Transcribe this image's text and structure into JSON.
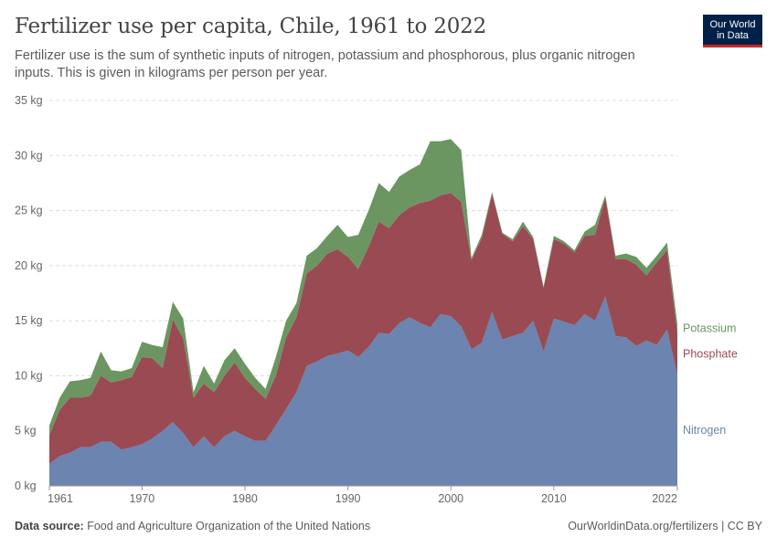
{
  "header": {
    "title": "Fertilizer use per capita, Chile, 1961 to 2022",
    "subtitle": "Fertilizer use is the sum of synthetic inputs of nitrogen, potassium and phosphorous, plus organic nitrogen inputs. This is given in kilograms per person per year."
  },
  "logo": {
    "line1": "Our World",
    "line2": "in Data"
  },
  "footer": {
    "source_label": "Data source:",
    "source_text": "Food and Agriculture Organization of the United Nations",
    "right_text": "OurWorldinData.org/fertilizers | CC BY"
  },
  "colors": {
    "Nitrogen": "#6b84b0",
    "Phosphate": "#9a4a52",
    "Potassium": "#6b9662",
    "grid": "#dddddd",
    "axis_text": "#666666"
  },
  "chart_data": {
    "type": "area",
    "stacked": true,
    "title": "Fertilizer use per capita, Chile, 1961 to 2022",
    "ylim": [
      0,
      35
    ],
    "y_ticks": [
      0,
      5,
      10,
      15,
      20,
      25,
      30,
      35
    ],
    "y_tick_labels": [
      "0 kg",
      "5 kg",
      "10 kg",
      "15 kg",
      "20 kg",
      "25 kg",
      "30 kg",
      "35 kg"
    ],
    "x_ticks": [
      1961,
      1970,
      1980,
      1990,
      2000,
      2010,
      2022
    ],
    "x_tick_labels": [
      "1961",
      "1970",
      "1980",
      "1990",
      "2000",
      "2010",
      "2022"
    ],
    "xlim": [
      1961,
      2022
    ],
    "grid": true,
    "legend_placement": "right-inline",
    "x": [
      1961,
      1962,
      1963,
      1964,
      1965,
      1966,
      1967,
      1968,
      1969,
      1970,
      1971,
      1972,
      1973,
      1974,
      1975,
      1976,
      1977,
      1978,
      1979,
      1980,
      1981,
      1982,
      1983,
      1984,
      1985,
      1986,
      1987,
      1988,
      1989,
      1990,
      1991,
      1992,
      1993,
      1994,
      1995,
      1996,
      1997,
      1998,
      1999,
      2000,
      2001,
      2002,
      2003,
      2004,
      2005,
      2006,
      2007,
      2008,
      2009,
      2010,
      2011,
      2012,
      2013,
      2014,
      2015,
      2016,
      2017,
      2018,
      2019,
      2020,
      2021,
      2022
    ],
    "series": [
      {
        "name": "Nitrogen",
        "values": [
          2.0,
          2.7,
          3.0,
          3.5,
          3.5,
          4.0,
          4.0,
          3.3,
          3.5,
          3.8,
          4.3,
          5.0,
          5.8,
          4.8,
          3.5,
          4.5,
          3.5,
          4.5,
          5.0,
          4.5,
          4.1,
          4.1,
          5.5,
          7.0,
          8.5,
          10.9,
          11.3,
          11.8,
          12.0,
          12.3,
          11.7,
          12.6,
          13.9,
          13.8,
          14.8,
          15.3,
          14.8,
          14.4,
          15.6,
          15.4,
          14.5,
          12.4,
          13.0,
          15.8,
          13.3,
          13.6,
          13.9,
          15.0,
          12.2,
          15.2,
          14.9,
          14.6,
          15.6,
          15.0,
          17.2,
          13.6,
          13.5,
          12.7,
          13.2,
          12.8,
          14.2,
          10.1
        ]
      },
      {
        "name": "Phosphate",
        "values": [
          2.6,
          4.2,
          5.0,
          4.5,
          4.7,
          6.0,
          5.4,
          6.3,
          6.4,
          7.9,
          7.3,
          5.7,
          9.3,
          8.6,
          4.5,
          4.8,
          5.0,
          5.5,
          6.2,
          5.3,
          4.7,
          3.8,
          4.5,
          6.5,
          6.8,
          8.4,
          8.7,
          9.3,
          9.5,
          8.5,
          8.0,
          9.1,
          10.1,
          9.6,
          9.8,
          10.0,
          10.9,
          11.5,
          10.8,
          11.2,
          11.3,
          8.1,
          9.5,
          10.7,
          9.6,
          8.6,
          9.7,
          7.4,
          5.8,
          7.2,
          7.1,
          6.6,
          7.1,
          7.8,
          9.0,
          7.0,
          7.1,
          7.4,
          5.9,
          7.5,
          7.2,
          3.8
        ]
      },
      {
        "name": "Potassium",
        "values": [
          0.9,
          1.1,
          1.5,
          1.6,
          1.6,
          2.2,
          1.1,
          0.8,
          0.8,
          1.4,
          1.2,
          1.9,
          1.6,
          1.8,
          0.5,
          1.6,
          0.8,
          1.4,
          1.3,
          1.3,
          1.0,
          0.9,
          1.7,
          1.5,
          1.3,
          1.6,
          1.6,
          1.6,
          2.2,
          1.8,
          3.1,
          3.3,
          3.5,
          3.3,
          3.5,
          3.4,
          3.5,
          5.4,
          4.9,
          4.9,
          4.7,
          0.2,
          0.3,
          0.2,
          0.1,
          0.2,
          0.4,
          0.2,
          0.1,
          0.3,
          0.2,
          0.2,
          0.4,
          0.9,
          0.2,
          0.3,
          0.5,
          0.7,
          0.7,
          0.6,
          0.7,
          0.8
        ]
      }
    ]
  }
}
